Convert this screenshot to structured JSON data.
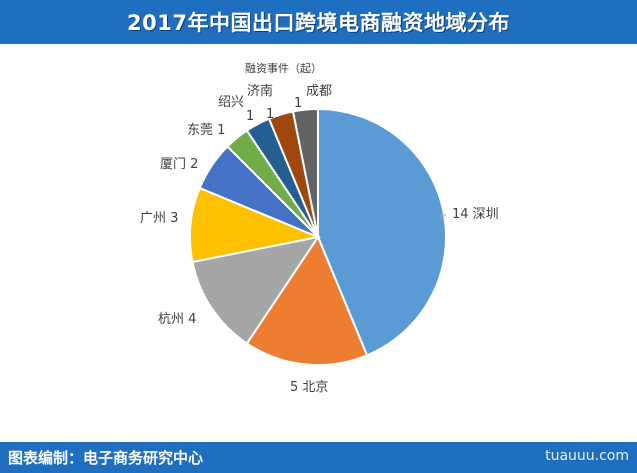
{
  "header": {
    "title": "2017年中国出口跨境电商融资地域分布"
  },
  "footer": {
    "credit": "图表编制：电子商务研究中心",
    "watermark": "tuauuu.com"
  },
  "colors": {
    "header_bg": "#1f6fc1",
    "slices": [
      "#5b9bd5",
      "#ed7d31",
      "#a5a5a5",
      "#ffc000",
      "#4472c4",
      "#70ad47",
      "#255e91",
      "#9e480e",
      "#636363"
    ]
  },
  "chart_data": {
    "type": "pie",
    "title": "融资事件（起）",
    "slices": [
      {
        "name": "深圳",
        "value": 14,
        "label": "14 深圳"
      },
      {
        "name": "北京",
        "value": 5,
        "label": "5 北京"
      },
      {
        "name": "杭州",
        "value": 4,
        "label": "杭州 4"
      },
      {
        "name": "广州",
        "value": 3,
        "label": "广州 3"
      },
      {
        "name": "厦门",
        "value": 2,
        "label": "厦门 2"
      },
      {
        "name": "东莞",
        "value": 1,
        "label": "东莞 1"
      },
      {
        "name": "绍兴",
        "value": 1,
        "label": "绍兴"
      },
      {
        "name": "济南",
        "value": 1,
        "label": "济南"
      },
      {
        "name": "成都",
        "value": 1,
        "label": "成都"
      }
    ],
    "extra_labels": [
      "1",
      "1",
      "1"
    ]
  }
}
